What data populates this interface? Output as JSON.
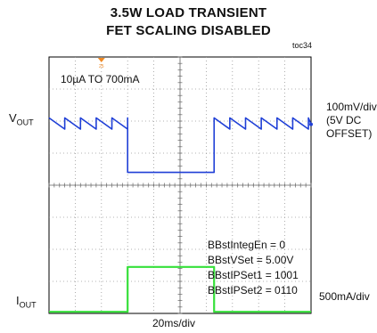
{
  "chart_data": {
    "type": "line",
    "title": "3.5W LOAD TRANSIENT",
    "subtitle": "FET SCALING DISABLED",
    "figure_id": "toc34",
    "condition": "10µA TO 700mA",
    "xlabel": "20ms/div",
    "grid": true,
    "divisions": {
      "x": 10,
      "y": 8
    },
    "trigger_marker": "25",
    "channels": [
      {
        "name_main": "V",
        "name_sub": "OUT",
        "scale_lines": [
          "100mV/div",
          "(5V DC",
          "OFFSET)"
        ],
        "color": "#1f3fd6",
        "x_div": [
          0,
          0.6,
          0.6,
          1.2,
          1.2,
          1.8,
          1.8,
          2.4,
          2.4,
          3.0,
          3.0,
          3.0,
          6.3,
          6.3,
          6.3,
          6.9,
          6.9,
          7.5,
          7.5,
          8.1,
          8.1,
          8.7,
          8.7,
          9.3,
          9.3,
          9.9,
          9.9,
          10.0
        ],
        "y_div": [
          2.1,
          1.75,
          2.1,
          1.75,
          2.1,
          1.75,
          2.1,
          1.75,
          2.1,
          1.75,
          2.1,
          0.4,
          0.4,
          2.1,
          2.1,
          1.75,
          2.1,
          1.75,
          2.1,
          1.75,
          2.1,
          1.75,
          2.1,
          1.75,
          2.1,
          1.75,
          2.1,
          1.9
        ]
      },
      {
        "name_main": "I",
        "name_sub": "OUT",
        "scale_lines": [
          "500mA/div"
        ],
        "color": "#36e03a",
        "x_div": [
          0,
          3.0,
          3.0,
          6.3,
          6.3,
          10.0
        ],
        "y_div": [
          -3.95,
          -3.95,
          -2.55,
          -2.55,
          -3.95,
          -3.95
        ]
      }
    ],
    "settings": [
      "BBstIntegEn = 0",
      "BBstVSet = 5.00V",
      "BBstIPSet1 = 1001",
      "BBstIPSet2 = 0110"
    ]
  }
}
